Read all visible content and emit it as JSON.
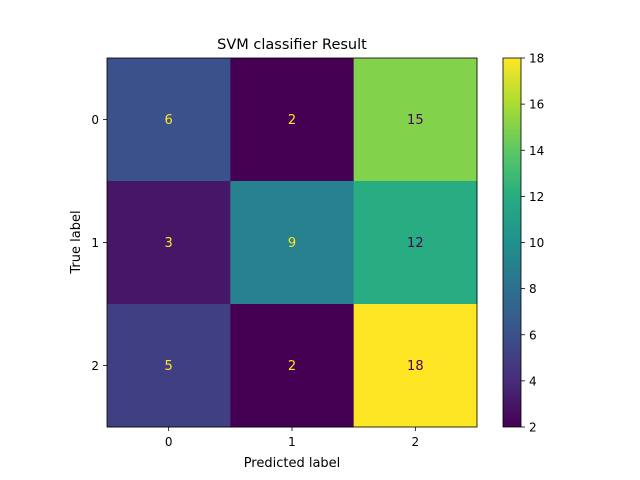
{
  "chart_data": {
    "type": "heatmap",
    "title": "SVM classifier Result",
    "xlabel": "Predicted label",
    "ylabel": "True label",
    "x_categories": [
      "0",
      "1",
      "2"
    ],
    "y_categories": [
      "0",
      "1",
      "2"
    ],
    "matrix": [
      [
        6,
        2,
        15
      ],
      [
        3,
        9,
        12
      ],
      [
        5,
        2,
        18
      ]
    ],
    "colormap": "viridis",
    "colorbar": {
      "range": [
        2,
        18
      ],
      "ticks": [
        "2",
        "4",
        "6",
        "8",
        "10",
        "12",
        "14",
        "16",
        "18"
      ]
    },
    "annotation_colors": {
      "on_dark": "#fde725",
      "on_light": "#440154"
    },
    "grid": false
  }
}
